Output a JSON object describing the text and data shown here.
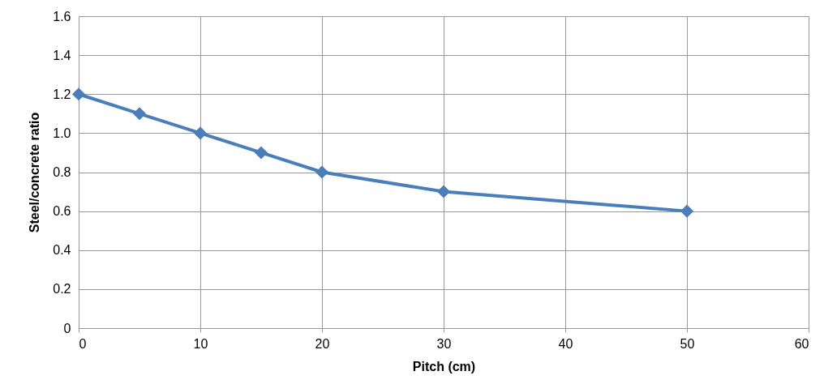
{
  "chart_data": {
    "type": "line",
    "xlabel": "Pitch (cm)",
    "ylabel": "Steel/concrete ratio",
    "x": [
      0,
      5,
      10,
      15,
      20,
      30,
      50
    ],
    "series": [
      {
        "color": "#4a7ebb",
        "values": [
          1.2,
          1.1,
          1.0,
          0.9,
          0.8,
          0.7,
          0.6
        ]
      }
    ],
    "xlim": [
      0,
      60
    ],
    "xticks": [
      0,
      10,
      20,
      30,
      40,
      50,
      60
    ],
    "ylim": [
      0,
      1.6
    ],
    "yticks": [
      0,
      0.2,
      0.4,
      0.6,
      0.8,
      {
        "value": 1.0,
        "label": "1.0"
      },
      1.2,
      1.4,
      1.6
    ],
    "grid": true,
    "marker": "diamond",
    "line_style": "solid"
  }
}
